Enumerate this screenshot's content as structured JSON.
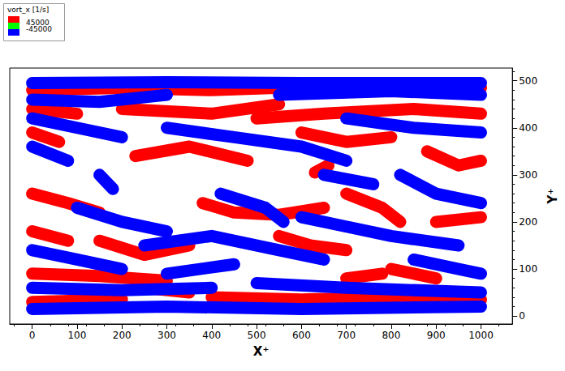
{
  "chart_data": {
    "type": "line",
    "xlabel": "X⁺",
    "ylabel": "Y⁺",
    "xlim": [
      -50,
      1070
    ],
    "ylim": [
      -17,
      527
    ],
    "xticks": [
      0,
      100,
      200,
      300,
      400,
      500,
      600,
      700,
      800,
      900,
      1000
    ],
    "yticks": [
      0,
      100,
      200,
      300,
      400,
      500
    ],
    "grid": false,
    "color_legend": {
      "title": "vort_x [1/s]",
      "colors": [
        "#ff0000",
        "#00ff00",
        "#0000ff"
      ],
      "levels": [
        45000,
        -45000
      ]
    },
    "series": [
      {
        "level": 45000,
        "color": "#ff0000",
        "streaks": [
          [
            [
              0,
              480
            ],
            [
              200,
              485
            ],
            [
              400,
              480
            ],
            [
              700,
              490
            ],
            [
              1000,
              485
            ]
          ],
          [
            [
              200,
              440
            ],
            [
              400,
              430
            ],
            [
              550,
              450
            ]
          ],
          [
            [
              500,
              420
            ],
            [
              650,
              430
            ],
            [
              850,
              440
            ],
            [
              1000,
              430
            ]
          ],
          [
            [
              0,
              440
            ],
            [
              100,
              430
            ]
          ],
          [
            [
              0,
              390
            ],
            [
              60,
              370
            ]
          ],
          [
            [
              230,
              340
            ],
            [
              350,
              360
            ],
            [
              480,
              330
            ]
          ],
          [
            [
              600,
              390
            ],
            [
              700,
              370
            ],
            [
              800,
              380
            ]
          ],
          [
            [
              880,
              350
            ],
            [
              950,
              320
            ],
            [
              1000,
              330
            ]
          ],
          [
            [
              0,
              260
            ],
            [
              80,
              240
            ],
            [
              150,
              220
            ]
          ],
          [
            [
              380,
              240
            ],
            [
              450,
              220
            ],
            [
              550,
              215
            ],
            [
              650,
              230
            ]
          ],
          [
            [
              700,
              260
            ],
            [
              780,
              230
            ],
            [
              820,
              200
            ]
          ],
          [
            [
              0,
              180
            ],
            [
              80,
              160
            ]
          ],
          [
            [
              150,
              160
            ],
            [
              250,
              130
            ],
            [
              350,
              150
            ]
          ],
          [
            [
              550,
              170
            ],
            [
              620,
              150
            ],
            [
              700,
              140
            ]
          ],
          [
            [
              800,
              100
            ],
            [
              900,
              80
            ]
          ],
          [
            [
              0,
              90
            ],
            [
              150,
              85
            ],
            [
              300,
              75
            ]
          ],
          [
            [
              400,
              40
            ],
            [
              600,
              35
            ],
            [
              800,
              40
            ],
            [
              1000,
              35
            ]
          ],
          [
            [
              0,
              30
            ],
            [
              200,
              35
            ]
          ],
          [
            [
              630,
              305
            ],
            [
              660,
              320
            ]
          ],
          [
            [
              900,
              200
            ],
            [
              1000,
              210
            ]
          ],
          [
            [
              250,
              60
            ],
            [
              350,
              50
            ]
          ],
          [
            [
              700,
              80
            ],
            [
              780,
              90
            ]
          ]
        ]
      },
      {
        "level": -45000,
        "color": "#0000ff",
        "streaks": [
          [
            [
              0,
              495
            ],
            [
              300,
              497
            ],
            [
              600,
              495
            ],
            [
              1000,
              495
            ]
          ],
          [
            [
              0,
              460
            ],
            [
              150,
              455
            ],
            [
              300,
              470
            ]
          ],
          [
            [
              550,
              470
            ],
            [
              800,
              478
            ],
            [
              1000,
              470
            ]
          ],
          [
            [
              0,
              420
            ],
            [
              100,
              400
            ],
            [
              200,
              380
            ]
          ],
          [
            [
              300,
              400
            ],
            [
              450,
              380
            ],
            [
              600,
              360
            ],
            [
              700,
              330
            ]
          ],
          [
            [
              700,
              420
            ],
            [
              850,
              400
            ],
            [
              1000,
              390
            ]
          ],
          [
            [
              0,
              360
            ],
            [
              80,
              330
            ]
          ],
          [
            [
              820,
              300
            ],
            [
              900,
              260
            ],
            [
              1000,
              240
            ]
          ],
          [
            [
              100,
              230
            ],
            [
              200,
              200
            ],
            [
              300,
              180
            ]
          ],
          [
            [
              250,
              150
            ],
            [
              400,
              170
            ],
            [
              550,
              140
            ],
            [
              650,
              120
            ]
          ],
          [
            [
              0,
              140
            ],
            [
              100,
              120
            ],
            [
              200,
              100
            ]
          ],
          [
            [
              600,
              210
            ],
            [
              700,
              190
            ],
            [
              800,
              170
            ],
            [
              950,
              150
            ]
          ],
          [
            [
              0,
              60
            ],
            [
              200,
              55
            ],
            [
              400,
              60
            ]
          ],
          [
            [
              500,
              70
            ],
            [
              700,
              60
            ],
            [
              1000,
              50
            ]
          ],
          [
            [
              0,
              15
            ],
            [
              300,
              20
            ],
            [
              600,
              15
            ],
            [
              1000,
              20
            ]
          ],
          [
            [
              420,
              260
            ],
            [
              520,
              230
            ],
            [
              560,
              200
            ]
          ],
          [
            [
              850,
              120
            ],
            [
              950,
              100
            ],
            [
              1000,
              90
            ]
          ],
          [
            [
              300,
              90
            ],
            [
              450,
              110
            ]
          ],
          [
            [
              650,
              300
            ],
            [
              760,
              280
            ]
          ],
          [
            [
              150,
              300
            ],
            [
              180,
              270
            ]
          ]
        ]
      }
    ]
  }
}
